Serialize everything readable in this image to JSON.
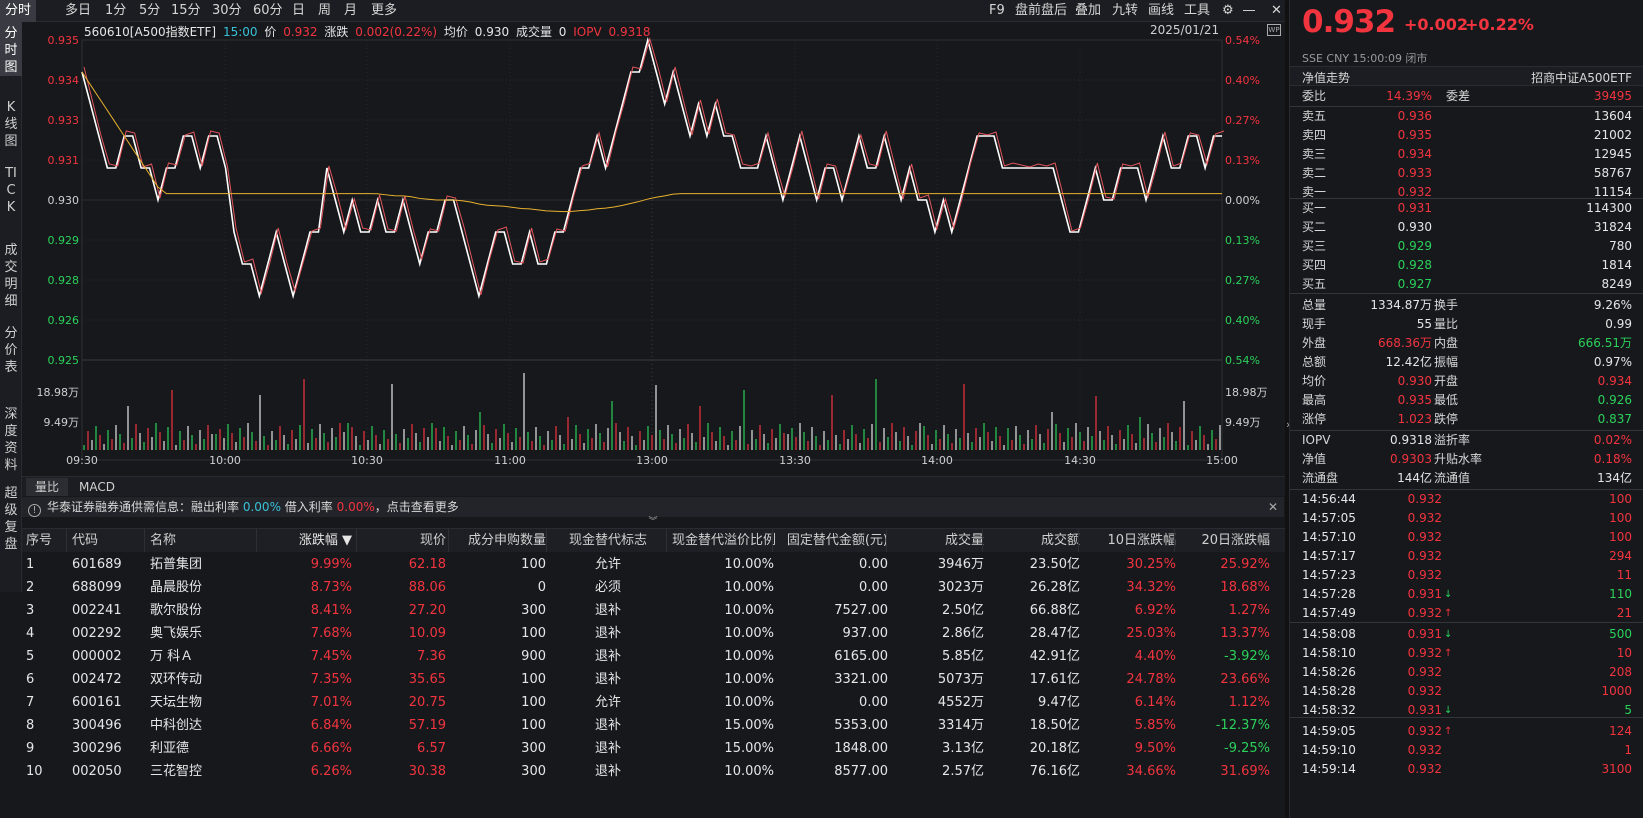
{
  "toolbar": {
    "left": [
      "分时",
      "多日",
      "1分",
      "5分",
      "15分",
      "30分",
      "60分",
      "日",
      "周",
      "月",
      "更多"
    ],
    "right": [
      "F9",
      "盘前盘后",
      "叠加",
      "九转",
      "画线",
      "工具"
    ]
  },
  "leftnav": [
    "分时图",
    "K线图",
    "TICK",
    "成交明细",
    "分价表",
    "深度资料",
    "超级复盘"
  ],
  "chart_info": {
    "code": "560610[A500指数ETF]",
    "time": "15:00",
    "price_label": "价",
    "price": "0.932",
    "change_label": "涨跌",
    "change": "0.002(0.22%)",
    "avg_label": "均价",
    "avg": "0.930",
    "vol_label": "成交量",
    "vol": "0",
    "iopv_label": "IOPV",
    "iopv": "0.9318",
    "date": "2025/01/21"
  },
  "chart_data": {
    "type": "line",
    "title": "",
    "x_ticks": [
      "09:30",
      "10:00",
      "10:30",
      "11:00",
      "13:00",
      "13:30",
      "14:00",
      "14:30",
      "15:00"
    ],
    "y_left": [
      "0.935",
      "0.934",
      "0.933",
      "0.931",
      "0.930",
      "0.929",
      "0.928",
      "0.926",
      "0.925"
    ],
    "y_right": [
      "0.54%",
      "0.40%",
      "0.27%",
      "0.13%",
      "0.00%",
      "0.13%",
      "0.27%",
      "0.40%",
      "0.54%"
    ],
    "y_range": [
      0.925,
      0.935
    ],
    "prev_close": 0.93,
    "vol_ticks": [
      "18.98万",
      "9.49万"
    ],
    "price_series": [
      0.934,
      0.933,
      0.932,
      0.931,
      0.931,
      0.932,
      0.932,
      0.931,
      0.931,
      0.93,
      0.931,
      0.931,
      0.932,
      0.932,
      0.931,
      0.932,
      0.932,
      0.931,
      0.929,
      0.928,
      0.928,
      0.927,
      0.928,
      0.929,
      0.928,
      0.927,
      0.928,
      0.929,
      0.929,
      0.931,
      0.93,
      0.929,
      0.93,
      0.929,
      0.929,
      0.93,
      0.929,
      0.929,
      0.93,
      0.929,
      0.928,
      0.929,
      0.929,
      0.93,
      0.93,
      0.929,
      0.928,
      0.927,
      0.928,
      0.929,
      0.929,
      0.928,
      0.928,
      0.929,
      0.928,
      0.928,
      0.929,
      0.929,
      0.93,
      0.931,
      0.931,
      0.932,
      0.931,
      0.932,
      0.933,
      0.934,
      0.934,
      0.935,
      0.934,
      0.933,
      0.934,
      0.933,
      0.932,
      0.933,
      0.932,
      0.933,
      0.932,
      0.932,
      0.931,
      0.931,
      0.931,
      0.932,
      0.931,
      0.93,
      0.931,
      0.932,
      0.931,
      0.93,
      0.931,
      0.931,
      0.93,
      0.931,
      0.932,
      0.931,
      0.931,
      0.932,
      0.931,
      0.93,
      0.931,
      0.93,
      0.93,
      0.929,
      0.93,
      0.929,
      0.93,
      0.931,
      0.932,
      0.932,
      0.932,
      0.931,
      0.931,
      0.931,
      0.931,
      0.931,
      0.931,
      0.931,
      0.93,
      0.929,
      0.929,
      0.93,
      0.931,
      0.93,
      0.93,
      0.931,
      0.931,
      0.931,
      0.93,
      0.931,
      0.932,
      0.931,
      0.931,
      0.932,
      0.932,
      0.931,
      0.932,
      0.932
    ]
  },
  "subtabs": [
    "量比",
    "MACD"
  ],
  "notice": {
    "prefix": "华泰证券融券通供需信息：融出利率",
    "rate1": "0.00%",
    "mid": "借入利率",
    "rate2": "0.00%",
    "suffix": "，点击查看更多"
  },
  "table": {
    "headers": [
      "序号",
      "代码",
      "名称",
      "涨跌幅 ▼",
      "现价",
      "成分申购数量",
      "现金替代标志",
      "现金替代溢价比例",
      "固定替代金额(元)",
      "成交量",
      "成交额",
      "10日涨跌幅",
      "20日涨跌幅"
    ],
    "rows": [
      [
        "1",
        "601689",
        "拓普集团",
        "9.99%",
        "62.18",
        "100",
        "允许",
        "10.00%",
        "0.00",
        "3946万",
        "23.50亿",
        "30.25%",
        "25.92%"
      ],
      [
        "2",
        "688099",
        "晶晨股份",
        "8.73%",
        "88.06",
        "0",
        "必须",
        "10.00%",
        "0.00",
        "3023万",
        "26.28亿",
        "34.32%",
        "18.68%"
      ],
      [
        "3",
        "002241",
        "歌尔股份",
        "8.41%",
        "27.20",
        "300",
        "退补",
        "10.00%",
        "7527.00",
        "2.50亿",
        "66.88亿",
        "6.92%",
        "1.27%"
      ],
      [
        "4",
        "002292",
        "奥飞娱乐",
        "7.68%",
        "10.09",
        "100",
        "退补",
        "10.00%",
        "937.00",
        "2.86亿",
        "28.47亿",
        "25.03%",
        "13.37%"
      ],
      [
        "5",
        "000002",
        "万 科Ａ",
        "7.45%",
        "7.36",
        "900",
        "退补",
        "10.00%",
        "6165.00",
        "5.85亿",
        "42.91亿",
        "4.40%",
        "-3.92%"
      ],
      [
        "6",
        "002472",
        "双环传动",
        "7.35%",
        "35.65",
        "100",
        "退补",
        "10.00%",
        "3321.00",
        "5073万",
        "17.61亿",
        "24.78%",
        "23.66%"
      ],
      [
        "7",
        "600161",
        "天坛生物",
        "7.01%",
        "20.75",
        "100",
        "允许",
        "10.00%",
        "0.00",
        "4552万",
        "9.47亿",
        "6.14%",
        "1.12%"
      ],
      [
        "8",
        "300496",
        "中科创达",
        "6.84%",
        "57.19",
        "100",
        "退补",
        "15.00%",
        "5353.00",
        "3314万",
        "18.50亿",
        "5.85%",
        "-12.37%"
      ],
      [
        "9",
        "300296",
        "利亚德",
        "6.66%",
        "6.57",
        "300",
        "退补",
        "15.00%",
        "1848.00",
        "3.13亿",
        "20.18亿",
        "9.50%",
        "-9.25%"
      ],
      [
        "10",
        "002050",
        "三花智控",
        "6.26%",
        "30.38",
        "300",
        "退补",
        "10.00%",
        "8577.00",
        "2.57亿",
        "76.16亿",
        "34.66%",
        "31.69%"
      ]
    ]
  },
  "quote": {
    "price": "0.932",
    "change": "+0.002",
    "pct": "+0.22%",
    "meta": "SSE   CNY   15:00:09   闭市",
    "nav_label": "净值走势",
    "name": "招商中证A500ETF",
    "weibi_label": "委比",
    "weibi": "14.39%",
    "weicha_label": "委差",
    "weicha": "39495",
    "asks": [
      [
        "卖五",
        "0.936",
        "13604"
      ],
      [
        "卖四",
        "0.935",
        "21002"
      ],
      [
        "卖三",
        "0.934",
        "12945"
      ],
      [
        "卖二",
        "0.933",
        "58767"
      ],
      [
        "卖一",
        "0.932",
        "11154"
      ]
    ],
    "bids": [
      [
        "买一",
        "0.931",
        "114300"
      ],
      [
        "买二",
        "0.930",
        "31824"
      ],
      [
        "买三",
        "0.929",
        "780"
      ],
      [
        "买四",
        "0.928",
        "1814"
      ],
      [
        "买五",
        "0.927",
        "8249"
      ]
    ],
    "stats": [
      [
        "总量",
        "1334.87万",
        "换手",
        "9.26%"
      ],
      [
        "现手",
        "55",
        "量比",
        "0.99"
      ],
      [
        "外盘",
        "668.36万",
        "内盘",
        "666.51万"
      ],
      [
        "总额",
        "12.42亿",
        "振幅",
        "0.97%"
      ],
      [
        "均价",
        "0.930",
        "开盘",
        "0.934"
      ],
      [
        "最高",
        "0.935",
        "最低",
        "0.926"
      ],
      [
        "涨停",
        "1.023",
        "跌停",
        "0.837"
      ]
    ],
    "iopv": [
      [
        "IOPV",
        "0.9318",
        "溢折率",
        "0.02%"
      ],
      [
        "净值",
        "0.9303",
        "升贴水率",
        "0.18%"
      ],
      [
        "流通盘",
        "144亿",
        "流通值",
        "134亿"
      ]
    ],
    "ticks": [
      [
        "14:56:44",
        "0.932",
        "",
        "100"
      ],
      [
        "14:57:05",
        "0.932",
        "",
        "100"
      ],
      [
        "14:57:10",
        "0.932",
        "",
        "100"
      ],
      [
        "14:57:17",
        "0.932",
        "",
        "294"
      ],
      [
        "14:57:23",
        "0.932",
        "",
        "11"
      ],
      [
        "14:57:28",
        "0.931",
        "dn",
        "110"
      ],
      [
        "14:57:49",
        "0.932",
        "up",
        "21"
      ],
      [
        "14:58:08",
        "0.931",
        "dn",
        "500"
      ],
      [
        "14:58:10",
        "0.932",
        "up",
        "10"
      ],
      [
        "14:58:26",
        "0.932",
        "",
        "208"
      ],
      [
        "14:58:28",
        "0.932",
        "",
        "1000"
      ],
      [
        "14:58:32",
        "0.931",
        "dn",
        "5"
      ],
      [
        "14:59:05",
        "0.932",
        "up",
        "124"
      ],
      [
        "14:59:10",
        "0.932",
        "",
        "1"
      ],
      [
        "14:59:14",
        "0.932",
        "",
        "3100"
      ]
    ]
  }
}
